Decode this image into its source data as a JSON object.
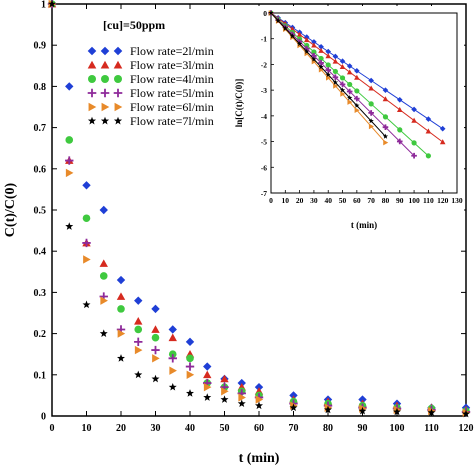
{
  "chart_data": [
    {
      "type": "scatter",
      "xlabel": "t (min)",
      "ylabel": "C(t)/C(0)",
      "xlim": [
        0,
        120
      ],
      "ylim": [
        0,
        1
      ],
      "xticks": [
        "0",
        "10",
        "20",
        "30",
        "40",
        "50",
        "60",
        "70",
        "80",
        "90",
        "100",
        "110",
        "120"
      ],
      "yticks": [
        "0",
        "0.1",
        "0.2",
        "0.3",
        "0.4",
        "0.5",
        "0.6",
        "0.7",
        "0.8",
        "0.9",
        "1"
      ],
      "annotation": "[cu]=50ppm",
      "legend_position": "top-left",
      "series": [
        {
          "name": "Flow rate=2l/min",
          "marker": "diamond",
          "color": "#1f3fd6",
          "points": [
            [
              0,
              1
            ],
            [
              5,
              0.8
            ],
            [
              10,
              0.56
            ],
            [
              15,
              0.5
            ],
            [
              20,
              0.33
            ],
            [
              25,
              0.28
            ],
            [
              30,
              0.26
            ],
            [
              35,
              0.21
            ],
            [
              40,
              0.18
            ],
            [
              45,
              0.12
            ],
            [
              50,
              0.09
            ],
            [
              55,
              0.08
            ],
            [
              60,
              0.07
            ],
            [
              70,
              0.05
            ],
            [
              80,
              0.04
            ],
            [
              90,
              0.04
            ],
            [
              100,
              0.03
            ],
            [
              110,
              0.02
            ],
            [
              120,
              0.02
            ]
          ]
        },
        {
          "name": "Flow rate=3l/min",
          "marker": "triangle",
          "color": "#d62a1f",
          "points": [
            [
              0,
              1
            ],
            [
              5,
              0.62
            ],
            [
              10,
              0.42
            ],
            [
              15,
              0.37
            ],
            [
              20,
              0.29
            ],
            [
              25,
              0.23
            ],
            [
              30,
              0.21
            ],
            [
              35,
              0.19
            ],
            [
              40,
              0.15
            ],
            [
              45,
              0.1
            ],
            [
              50,
              0.09
            ],
            [
              55,
              0.07
            ],
            [
              60,
              0.06
            ],
            [
              70,
              0.04
            ],
            [
              80,
              0.035
            ],
            [
              90,
              0.03
            ],
            [
              100,
              0.025
            ],
            [
              110,
              0.02
            ],
            [
              120,
              0.015
            ]
          ]
        },
        {
          "name": "Flow rate=4l/min",
          "marker": "circle",
          "color": "#3fc93f",
          "points": [
            [
              0,
              1
            ],
            [
              5,
              0.67
            ],
            [
              10,
              0.48
            ],
            [
              15,
              0.34
            ],
            [
              20,
              0.26
            ],
            [
              25,
              0.21
            ],
            [
              30,
              0.19
            ],
            [
              35,
              0.15
            ],
            [
              40,
              0.14
            ],
            [
              45,
              0.08
            ],
            [
              50,
              0.07
            ],
            [
              55,
              0.06
            ],
            [
              60,
              0.05
            ],
            [
              70,
              0.035
            ],
            [
              80,
              0.03
            ],
            [
              90,
              0.025
            ],
            [
              100,
              0.02
            ],
            [
              110,
              0.018
            ],
            [
              120,
              0.012
            ]
          ]
        },
        {
          "name": "Flow rate=5l/min",
          "marker": "plus",
          "color": "#8e2a9a",
          "points": [
            [
              0,
              1
            ],
            [
              5,
              0.62
            ],
            [
              10,
              0.42
            ],
            [
              15,
              0.29
            ],
            [
              20,
              0.21
            ],
            [
              25,
              0.18
            ],
            [
              30,
              0.16
            ],
            [
              35,
              0.14
            ],
            [
              40,
              0.12
            ],
            [
              45,
              0.08
            ],
            [
              50,
              0.07
            ],
            [
              55,
              0.055
            ],
            [
              60,
              0.045
            ],
            [
              70,
              0.03
            ],
            [
              80,
              0.025
            ],
            [
              90,
              0.02
            ],
            [
              100,
              0.018
            ],
            [
              110,
              0.015
            ],
            [
              120,
              0.01
            ]
          ]
        },
        {
          "name": "Flow rate=6l/min",
          "marker": "right-triangle",
          "color": "#e88a2a",
          "points": [
            [
              0,
              1
            ],
            [
              5,
              0.59
            ],
            [
              10,
              0.38
            ],
            [
              15,
              0.28
            ],
            [
              20,
              0.2
            ],
            [
              25,
              0.16
            ],
            [
              30,
              0.14
            ],
            [
              35,
              0.11
            ],
            [
              40,
              0.1
            ],
            [
              45,
              0.07
            ],
            [
              50,
              0.06
            ],
            [
              55,
              0.045
            ],
            [
              60,
              0.04
            ],
            [
              70,
              0.025
            ],
            [
              80,
              0.02
            ],
            [
              90,
              0.018
            ],
            [
              100,
              0.015
            ],
            [
              110,
              0.012
            ],
            [
              120,
              0.008
            ]
          ]
        },
        {
          "name": "Flow rate=7l/min",
          "marker": "star",
          "color": "#000000",
          "points": [
            [
              0,
              1
            ],
            [
              5,
              0.46
            ],
            [
              10,
              0.27
            ],
            [
              15,
              0.2
            ],
            [
              20,
              0.14
            ],
            [
              25,
              0.1
            ],
            [
              30,
              0.09
            ],
            [
              35,
              0.07
            ],
            [
              40,
              0.055
            ],
            [
              45,
              0.045
            ],
            [
              50,
              0.04
            ],
            [
              55,
              0.03
            ],
            [
              60,
              0.025
            ],
            [
              70,
              0.02
            ],
            [
              80,
              0.015
            ],
            [
              90,
              0.012
            ],
            [
              100,
              0.01
            ],
            [
              110,
              0.008
            ],
            [
              120,
              0.005
            ]
          ]
        }
      ]
    },
    {
      "type": "scatter",
      "xlabel": "t (min)",
      "ylabel": "ln[C(t)/C(0)]",
      "xlim": [
        0,
        130
      ],
      "ylim": [
        -7,
        0
      ],
      "xticks": [
        "0",
        "10",
        "20",
        "30",
        "40",
        "50",
        "60",
        "70",
        "80",
        "90",
        "100",
        "110",
        "120",
        "130"
      ],
      "yticks": [
        "-7",
        "-6",
        "-5",
        "-4",
        "-3",
        "-2",
        "-1",
        "0"
      ],
      "series": [
        {
          "name": "Flow rate=2l/min",
          "marker": "diamond",
          "color": "#1f3fd6",
          "slope": -0.0375,
          "fit_end": 120,
          "x": [
            0,
            5,
            10,
            15,
            20,
            25,
            30,
            35,
            40,
            45,
            50,
            55,
            60,
            70,
            80,
            90,
            100,
            110,
            120
          ]
        },
        {
          "name": "Flow rate=3l/min",
          "marker": "triangle",
          "color": "#d62a1f",
          "slope": -0.0418,
          "fit_end": 120,
          "x": [
            0,
            5,
            10,
            15,
            20,
            25,
            30,
            35,
            40,
            45,
            50,
            55,
            60,
            70,
            80,
            90,
            100,
            110,
            120
          ]
        },
        {
          "name": "Flow rate=4l/min",
          "marker": "circle",
          "color": "#3fc93f",
          "slope": -0.0505,
          "fit_end": 110,
          "x": [
            0,
            5,
            10,
            15,
            20,
            25,
            30,
            35,
            40,
            45,
            50,
            55,
            60,
            70,
            80,
            90,
            100,
            110
          ]
        },
        {
          "name": "Flow rate=5l/min",
          "marker": "plus",
          "color": "#8e2a9a",
          "slope": -0.0555,
          "fit_end": 100,
          "x": [
            0,
            5,
            10,
            15,
            20,
            25,
            30,
            35,
            40,
            45,
            50,
            55,
            60,
            70,
            80,
            90,
            100
          ]
        },
        {
          "name": "Flow rate=6l/min",
          "marker": "right-triangle",
          "color": "#e88a2a",
          "slope": -0.063,
          "fit_end": 80,
          "x": [
            0,
            5,
            10,
            15,
            20,
            25,
            30,
            35,
            40,
            45,
            50,
            55,
            60,
            70,
            80
          ]
        },
        {
          "name": "Flow rate=7l/min",
          "marker": "star",
          "color": "#000000",
          "slope": -0.06,
          "fit_end": 80,
          "x": [
            0,
            5,
            10,
            15,
            20,
            25,
            30,
            35,
            40,
            45,
            50,
            55,
            60,
            70,
            80
          ]
        }
      ]
    }
  ]
}
